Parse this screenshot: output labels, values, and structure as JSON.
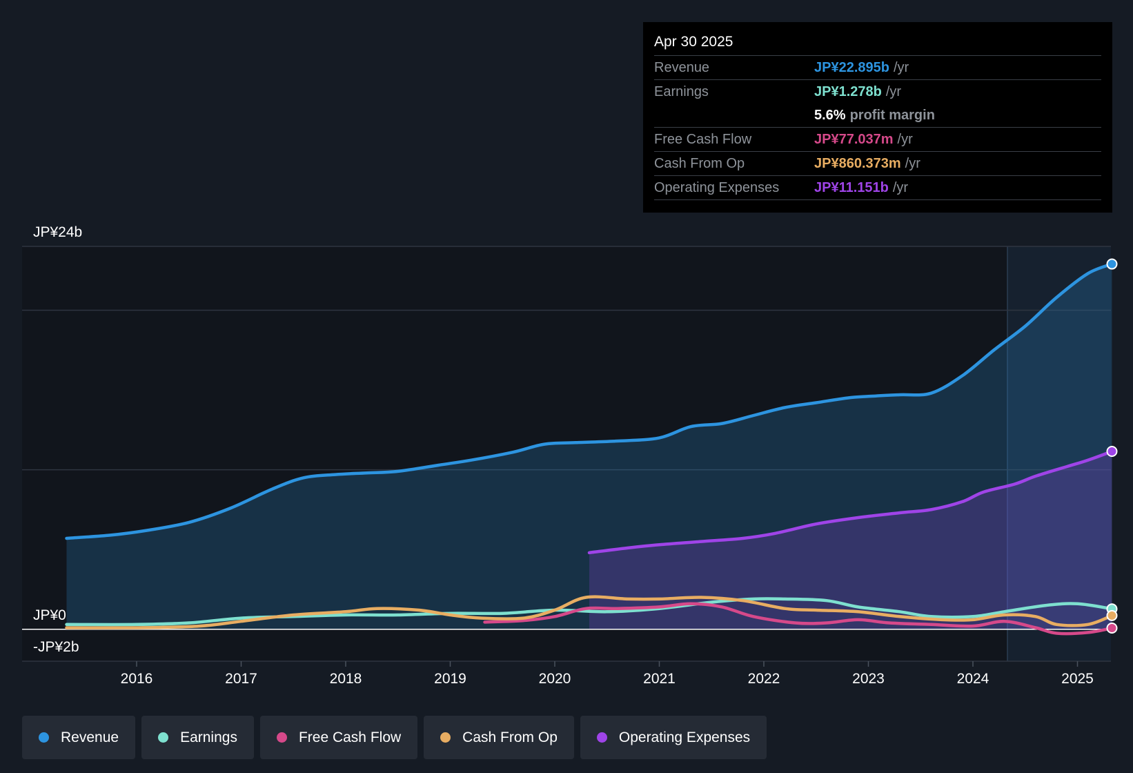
{
  "chart_data": {
    "type": "line",
    "x_range": [
      2015.3,
      2025.33
    ],
    "ylim": [
      -2,
      24
    ],
    "y_labels": [
      {
        "value": 24,
        "text": "JP¥24b"
      },
      {
        "value": 0,
        "text": "JP¥0"
      },
      {
        "value": -2,
        "text": "-JP¥2b"
      }
    ],
    "x_ticks": [
      2016,
      2017,
      2018,
      2019,
      2020,
      2021,
      2022,
      2023,
      2024,
      2025
    ],
    "x_tick_labels": [
      "2016",
      "2017",
      "2018",
      "2019",
      "2020",
      "2021",
      "2022",
      "2023",
      "2024",
      "2025"
    ],
    "highlight_start": 2024.33,
    "series": [
      {
        "name": "Revenue",
        "color": "#2d94e0",
        "fill": true,
        "end_marker": true,
        "points": [
          [
            2015.33,
            5.7
          ],
          [
            2015.75,
            5.9
          ],
          [
            2016.1,
            6.2
          ],
          [
            2016.5,
            6.7
          ],
          [
            2016.9,
            7.6
          ],
          [
            2017.3,
            8.8
          ],
          [
            2017.6,
            9.5
          ],
          [
            2017.9,
            9.7
          ],
          [
            2018.2,
            9.8
          ],
          [
            2018.5,
            9.9
          ],
          [
            2018.9,
            10.3
          ],
          [
            2019.2,
            10.6
          ],
          [
            2019.6,
            11.1
          ],
          [
            2019.9,
            11.6
          ],
          [
            2020.2,
            11.7
          ],
          [
            2020.6,
            11.8
          ],
          [
            2021.0,
            12.0
          ],
          [
            2021.3,
            12.7
          ],
          [
            2021.6,
            12.9
          ],
          [
            2021.9,
            13.4
          ],
          [
            2022.2,
            13.9
          ],
          [
            2022.5,
            14.2
          ],
          [
            2022.8,
            14.5
          ],
          [
            2023.0,
            14.6
          ],
          [
            2023.3,
            14.7
          ],
          [
            2023.6,
            14.8
          ],
          [
            2023.9,
            15.9
          ],
          [
            2024.2,
            17.5
          ],
          [
            2024.5,
            19.0
          ],
          [
            2024.8,
            20.8
          ],
          [
            2025.1,
            22.3
          ],
          [
            2025.33,
            22.895
          ]
        ]
      },
      {
        "name": "Earnings",
        "color": "#7ee0cf",
        "fill": false,
        "end_marker": true,
        "points": [
          [
            2015.33,
            0.3
          ],
          [
            2016.0,
            0.3
          ],
          [
            2016.5,
            0.4
          ],
          [
            2017.0,
            0.7
          ],
          [
            2017.5,
            0.8
          ],
          [
            2018.0,
            0.9
          ],
          [
            2018.5,
            0.9
          ],
          [
            2019.0,
            1.0
          ],
          [
            2019.5,
            1.0
          ],
          [
            2020.0,
            1.2
          ],
          [
            2020.5,
            1.1
          ],
          [
            2021.0,
            1.3
          ],
          [
            2021.5,
            1.7
          ],
          [
            2021.9,
            1.9
          ],
          [
            2022.2,
            1.9
          ],
          [
            2022.6,
            1.8
          ],
          [
            2022.9,
            1.4
          ],
          [
            2023.3,
            1.1
          ],
          [
            2023.6,
            0.8
          ],
          [
            2024.0,
            0.8
          ],
          [
            2024.3,
            1.1
          ],
          [
            2024.7,
            1.5
          ],
          [
            2025.0,
            1.6
          ],
          [
            2025.33,
            1.278
          ]
        ]
      },
      {
        "name": "Free Cash Flow",
        "color": "#d6498a",
        "fill": false,
        "end_marker": true,
        "points": [
          [
            2019.33,
            0.45
          ],
          [
            2019.7,
            0.55
          ],
          [
            2020.0,
            0.8
          ],
          [
            2020.3,
            1.3
          ],
          [
            2020.6,
            1.3
          ],
          [
            2021.0,
            1.4
          ],
          [
            2021.3,
            1.6
          ],
          [
            2021.6,
            1.4
          ],
          [
            2021.9,
            0.8
          ],
          [
            2022.3,
            0.4
          ],
          [
            2022.6,
            0.4
          ],
          [
            2022.9,
            0.6
          ],
          [
            2023.2,
            0.4
          ],
          [
            2023.6,
            0.3
          ],
          [
            2024.0,
            0.2
          ],
          [
            2024.3,
            0.5
          ],
          [
            2024.6,
            0.1
          ],
          [
            2024.8,
            -0.25
          ],
          [
            2025.1,
            -0.2
          ],
          [
            2025.33,
            0.077
          ]
        ]
      },
      {
        "name": "Cash From Op",
        "color": "#e8ad62",
        "fill": false,
        "end_marker": true,
        "points": [
          [
            2015.33,
            0.1
          ],
          [
            2016.0,
            0.1
          ],
          [
            2016.6,
            0.2
          ],
          [
            2017.0,
            0.5
          ],
          [
            2017.5,
            0.9
          ],
          [
            2018.0,
            1.1
          ],
          [
            2018.3,
            1.3
          ],
          [
            2018.7,
            1.2
          ],
          [
            2019.0,
            0.9
          ],
          [
            2019.3,
            0.7
          ],
          [
            2019.7,
            0.7
          ],
          [
            2020.0,
            1.2
          ],
          [
            2020.3,
            2.0
          ],
          [
            2020.7,
            1.9
          ],
          [
            2021.0,
            1.9
          ],
          [
            2021.4,
            2.0
          ],
          [
            2021.8,
            1.8
          ],
          [
            2022.2,
            1.3
          ],
          [
            2022.5,
            1.2
          ],
          [
            2022.9,
            1.1
          ],
          [
            2023.3,
            0.8
          ],
          [
            2023.7,
            0.6
          ],
          [
            2024.0,
            0.6
          ],
          [
            2024.3,
            0.9
          ],
          [
            2024.6,
            0.8
          ],
          [
            2024.8,
            0.3
          ],
          [
            2025.1,
            0.3
          ],
          [
            2025.33,
            0.86
          ]
        ]
      },
      {
        "name": "Operating Expenses",
        "color": "#9f44e8",
        "fill": true,
        "end_marker": true,
        "points": [
          [
            2020.33,
            4.8
          ],
          [
            2020.7,
            5.1
          ],
          [
            2021.0,
            5.3
          ],
          [
            2021.4,
            5.5
          ],
          [
            2021.8,
            5.7
          ],
          [
            2022.1,
            6.0
          ],
          [
            2022.5,
            6.6
          ],
          [
            2022.9,
            7.0
          ],
          [
            2023.3,
            7.3
          ],
          [
            2023.6,
            7.5
          ],
          [
            2023.9,
            8.0
          ],
          [
            2024.1,
            8.6
          ],
          [
            2024.4,
            9.1
          ],
          [
            2024.6,
            9.6
          ],
          [
            2024.9,
            10.2
          ],
          [
            2025.1,
            10.6
          ],
          [
            2025.33,
            11.151
          ]
        ]
      }
    ]
  },
  "tooltip": {
    "date": "Apr 30 2025",
    "revenue_label": "Revenue",
    "revenue_value": "JP¥22.895b",
    "earnings_label": "Earnings",
    "earnings_value": "JP¥1.278b",
    "margin_value": "5.6%",
    "margin_label": "profit margin",
    "fcf_label": "Free Cash Flow",
    "fcf_value": "JP¥77.037m",
    "cfo_label": "Cash From Op",
    "cfo_value": "JP¥860.373m",
    "opex_label": "Operating Expenses",
    "opex_value": "JP¥11.151b",
    "unit": "/yr"
  },
  "legend": {
    "items": [
      {
        "label": "Revenue",
        "color": "#2d94e0"
      },
      {
        "label": "Earnings",
        "color": "#7ee0cf"
      },
      {
        "label": "Free Cash Flow",
        "color": "#d6498a"
      },
      {
        "label": "Cash From Op",
        "color": "#e8ad62"
      },
      {
        "label": "Operating Expenses",
        "color": "#9f44e8"
      }
    ]
  }
}
